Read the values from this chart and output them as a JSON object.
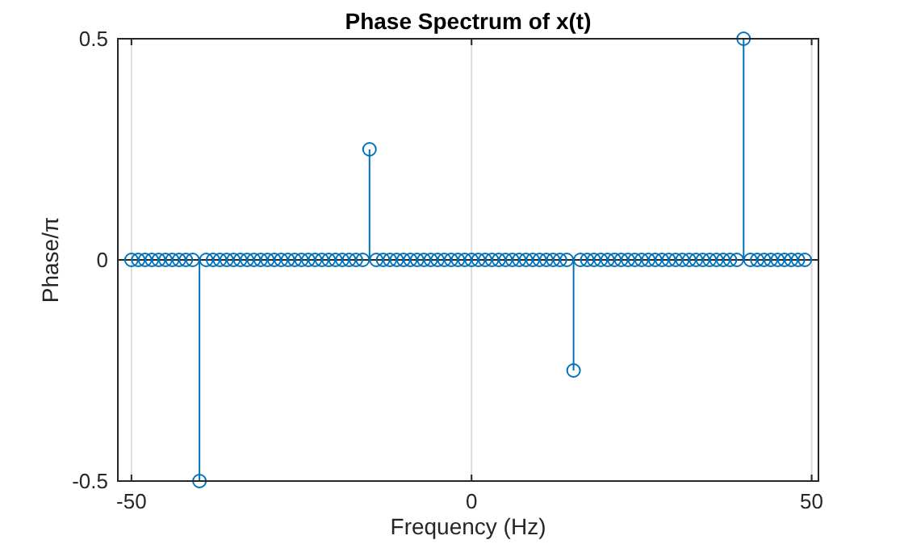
{
  "chart_data": {
    "type": "lollipop",
    "title": "Phase Spectrum of x(t)",
    "xlabel": "Frequency (Hz)",
    "ylabel": "Phase/π",
    "x": [
      -50,
      -49,
      -48,
      -47,
      -46,
      -45,
      -44,
      -43,
      -42,
      -41,
      -40,
      -39,
      -38,
      -37,
      -36,
      -35,
      -34,
      -33,
      -32,
      -31,
      -30,
      -29,
      -28,
      -27,
      -26,
      -25,
      -24,
      -23,
      -22,
      -21,
      -20,
      -19,
      -18,
      -17,
      -16,
      -15,
      -14,
      -13,
      -12,
      -11,
      -10,
      -9,
      -8,
      -7,
      -6,
      -5,
      -4,
      -3,
      -2,
      -1,
      0,
      1,
      2,
      3,
      4,
      5,
      6,
      7,
      8,
      9,
      10,
      11,
      12,
      13,
      14,
      15,
      16,
      17,
      18,
      19,
      20,
      21,
      22,
      23,
      24,
      25,
      26,
      27,
      28,
      29,
      30,
      31,
      32,
      33,
      34,
      35,
      36,
      37,
      38,
      39,
      40,
      41,
      42,
      43,
      44,
      45,
      46,
      47,
      48,
      49
    ],
    "series": [
      {
        "color": "#0072bd",
        "values": [
          0,
          0,
          0,
          0,
          0,
          0,
          0,
          0,
          0,
          0,
          -0.5,
          0,
          0,
          0,
          0,
          0,
          0,
          0,
          0,
          0,
          0,
          0,
          0,
          0,
          0,
          0,
          0,
          0,
          0,
          0,
          0,
          0,
          0,
          0,
          0,
          0.25,
          0,
          0,
          0,
          0,
          0,
          0,
          0,
          0,
          0,
          0,
          0,
          0,
          0,
          0,
          0,
          0,
          0,
          0,
          0,
          0,
          0,
          0,
          0,
          0,
          0,
          0,
          0,
          0,
          0,
          -0.25,
          0,
          0,
          0,
          0,
          0,
          0,
          0,
          0,
          0,
          0,
          0,
          0,
          0,
          0,
          0,
          0,
          0,
          0,
          0,
          0,
          0,
          0,
          0,
          0,
          0.5,
          0,
          0,
          0,
          0,
          0,
          0,
          0,
          0,
          0
        ]
      }
    ],
    "xlim": [
      -52,
      51
    ],
    "ylim": [
      -0.5,
      0.5
    ],
    "xticks": [
      -50,
      0,
      50
    ],
    "yticks": [
      {
        "value": -0.5,
        "label": "-0.5"
      },
      0,
      {
        "value": 0.5,
        "label": "0.5"
      }
    ],
    "grid": "x",
    "marker": "circle",
    "ref_lines": [
      {
        "axis": "y",
        "value": 0,
        "color": "#262626"
      }
    ]
  }
}
